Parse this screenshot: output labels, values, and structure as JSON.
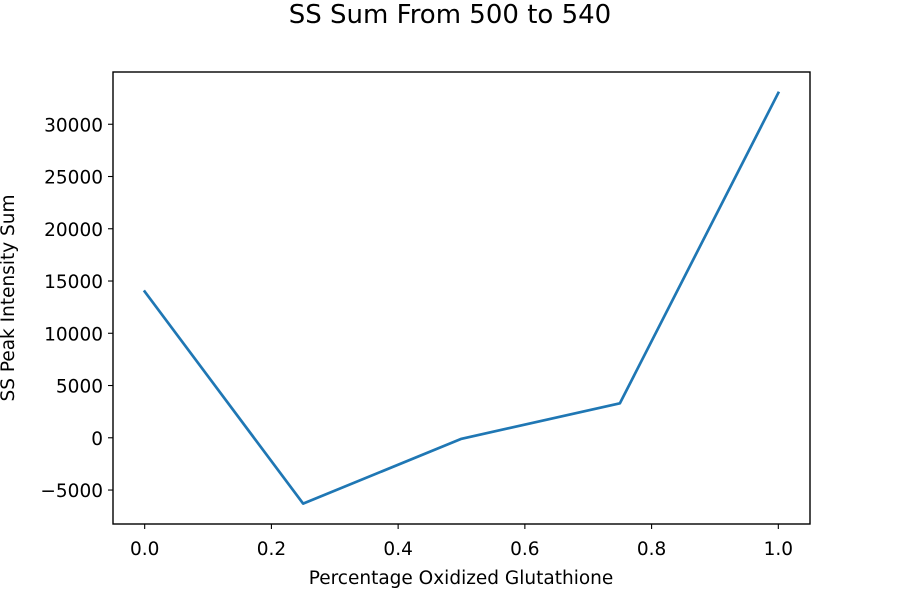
{
  "chart_data": {
    "type": "line",
    "title": "SS Sum From 500 to 540",
    "xlabel": "Percentage Oxidized Glutathione",
    "ylabel": "SS Peak Intensity Sum",
    "x": [
      0.0,
      0.25,
      0.5,
      0.75,
      1.0
    ],
    "series": [
      {
        "values": [
          14000,
          -6300,
          -100,
          3300,
          33000
        ]
      }
    ],
    "xlim": [
      -0.05,
      1.05
    ],
    "ylim": [
      -8250,
      35000
    ],
    "xticks": [
      0.0,
      0.2,
      0.4,
      0.6,
      0.8,
      1.0
    ],
    "xtick_labels": [
      "0.0",
      "0.2",
      "0.4",
      "0.6",
      "0.8",
      "1.0"
    ],
    "yticks": [
      -5000,
      0,
      5000,
      10000,
      15000,
      20000,
      25000,
      30000
    ],
    "ytick_labels": [
      "−5000",
      "0",
      "5000",
      "10000",
      "15000",
      "20000",
      "25000",
      "30000"
    ],
    "grid": false,
    "line_color": "#1f77b4"
  }
}
